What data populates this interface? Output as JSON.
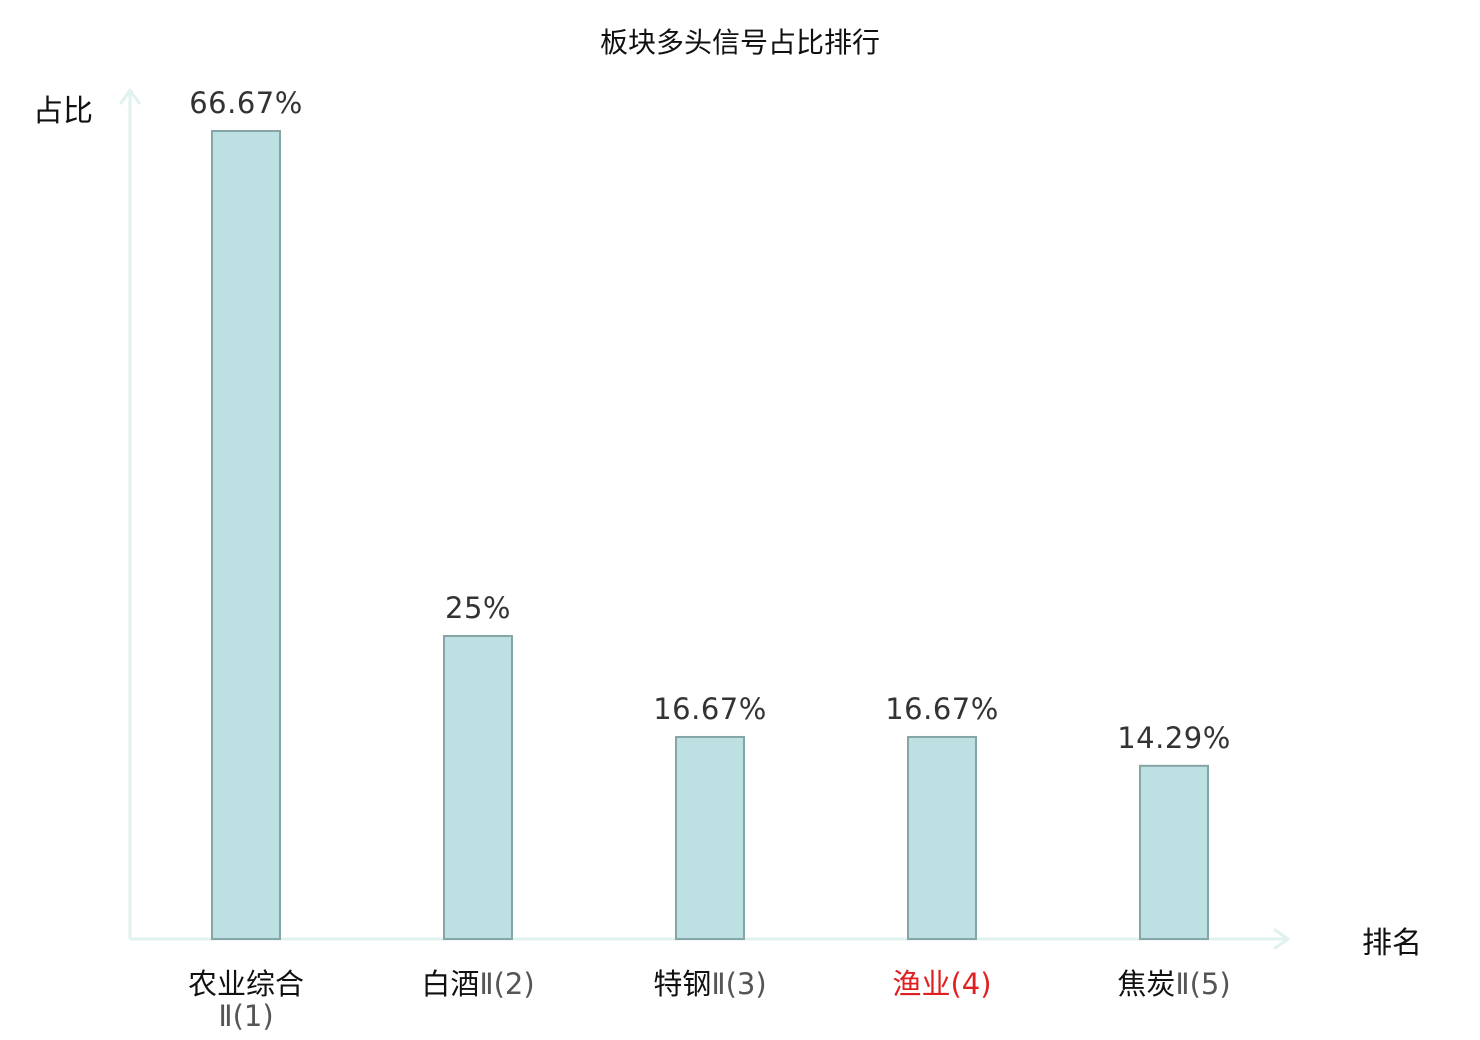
{
  "chart_data": {
    "type": "bar",
    "title": "板块多头信号占比排行",
    "ylabel": "占比",
    "xlabel": "排名",
    "ylim": [
      0,
      70
    ],
    "categories": [
      {
        "name": "农业综合",
        "rank": "Ⅱ(1)",
        "highlight": false
      },
      {
        "name": "白酒",
        "rank": "Ⅱ(2)",
        "highlight": false
      },
      {
        "name": "特钢",
        "rank": "Ⅱ(3)",
        "highlight": false
      },
      {
        "name": "渔业",
        "rank": "(4)",
        "highlight": true
      },
      {
        "name": "焦炭",
        "rank": "Ⅱ(5)",
        "highlight": false
      }
    ],
    "values": [
      66.67,
      25,
      16.67,
      16.67,
      14.29
    ],
    "value_labels": [
      "66.67%",
      "25%",
      "16.67%",
      "16.67%",
      "14.29%"
    ]
  },
  "colors": {
    "bar_fill": "#bde0e2",
    "bar_stroke": "#85a5a6",
    "axis": "#dff2ef",
    "highlight_text": "#e02020",
    "rank_text": "#555555",
    "category_text": "#111111"
  }
}
